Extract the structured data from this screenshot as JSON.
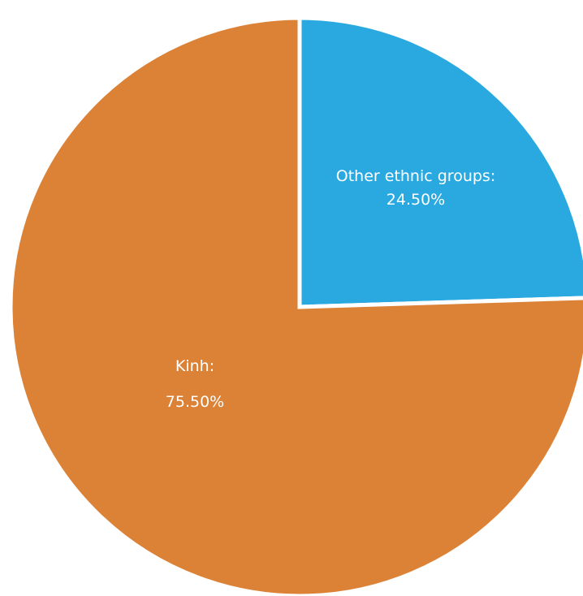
{
  "chart_data": {
    "type": "pie",
    "slices": [
      {
        "name": "Other ethnic groups",
        "label_line1": "Other ethnic groups:",
        "label_line2": "24.50%",
        "value": 24.5,
        "color": "#29a9e0"
      },
      {
        "name": "Kinh",
        "label_line1": "Kinh:",
        "label_line2": "75.50%",
        "value": 75.5,
        "color": "#dc8236"
      }
    ],
    "start_angle_deg": 0,
    "direction": "clockwise",
    "separator_color": "#ffffff"
  }
}
